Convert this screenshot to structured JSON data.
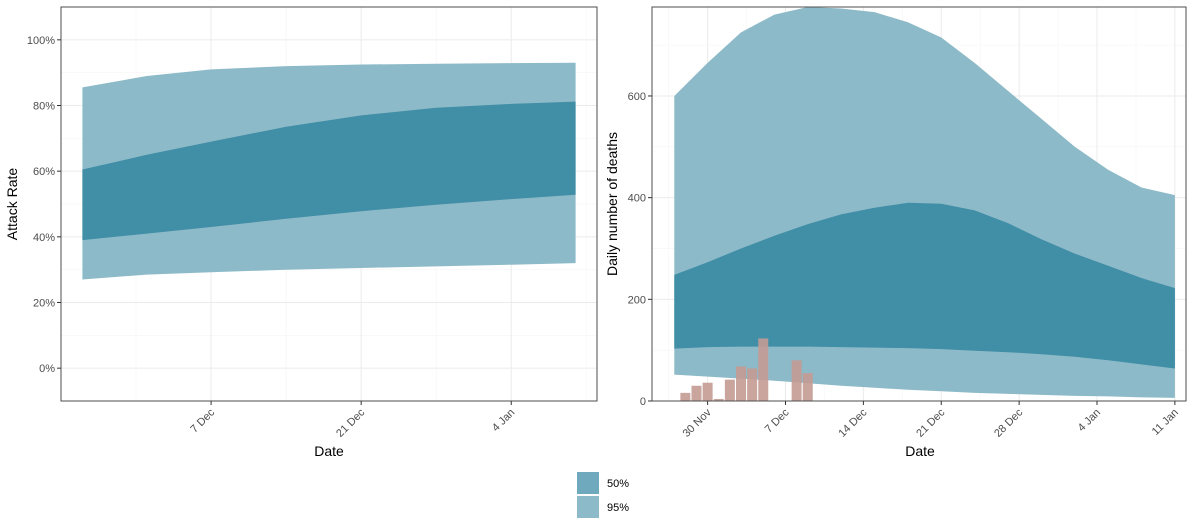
{
  "colors": {
    "band_95": "#8dbac8",
    "band_50": "#418ea7",
    "observed_deaths": "#c49b93",
    "panel_border": "#4d4d4d",
    "grid_major": "#ebebeb",
    "grid_minor": "#f5f5f5"
  },
  "legend": {
    "items": [
      {
        "label": "50%",
        "color": "#6fa9bd"
      },
      {
        "label": "95%",
        "color": "#8dbac8"
      }
    ]
  },
  "chart_data": [
    {
      "type": "area",
      "title": "",
      "xlabel": "Date",
      "ylabel": "Attack Rate",
      "xlim": [
        "2020-11-23",
        "2021-01-12"
      ],
      "ylim": [
        -0.1,
        1.1
      ],
      "x_ticks": [
        {
          "date": "2020-12-07",
          "label": "7 Dec"
        },
        {
          "date": "2020-12-21",
          "label": "21 Dec"
        },
        {
          "date": "2021-01-04",
          "label": "4 Jan"
        }
      ],
      "y_ticks": [
        {
          "value": 0.0,
          "label": "0%"
        },
        {
          "value": 0.2,
          "label": "20%"
        },
        {
          "value": 0.4,
          "label": "40%"
        },
        {
          "value": 0.6,
          "label": "60%"
        },
        {
          "value": 0.8,
          "label": "80%"
        },
        {
          "value": 1.0,
          "label": "100%"
        }
      ],
      "grid": true,
      "series": [
        {
          "name": "95%",
          "x": [
            "2020-11-25",
            "2020-12-01",
            "2020-12-07",
            "2020-12-14",
            "2020-12-21",
            "2020-12-28",
            "2021-01-04",
            "2021-01-10"
          ],
          "lower": [
            0.27,
            0.285,
            0.292,
            0.3,
            0.305,
            0.31,
            0.315,
            0.32
          ],
          "upper": [
            0.855,
            0.89,
            0.91,
            0.92,
            0.925,
            0.927,
            0.929,
            0.93
          ]
        },
        {
          "name": "50%",
          "x": [
            "2020-11-25",
            "2020-12-01",
            "2020-12-07",
            "2020-12-14",
            "2020-12-21",
            "2020-12-28",
            "2021-01-04",
            "2021-01-10"
          ],
          "lower": [
            0.39,
            0.41,
            0.43,
            0.455,
            0.478,
            0.498,
            0.515,
            0.528
          ],
          "upper": [
            0.605,
            0.65,
            0.69,
            0.735,
            0.77,
            0.793,
            0.805,
            0.812
          ]
        }
      ]
    },
    {
      "type": "area",
      "title": "",
      "xlabel": "Date",
      "ylabel": "Daily number of deaths",
      "xlim": [
        "2020-11-25",
        "2021-01-12"
      ],
      "ylim": [
        0,
        775
      ],
      "x_ticks": [
        {
          "date": "2020-11-30",
          "label": "30 Nov"
        },
        {
          "date": "2020-12-07",
          "label": "7 Dec"
        },
        {
          "date": "2020-12-14",
          "label": "14 Dec"
        },
        {
          "date": "2020-12-21",
          "label": "21 Dec"
        },
        {
          "date": "2020-12-28",
          "label": "28 Dec"
        },
        {
          "date": "2021-01-04",
          "label": "4 Jan"
        },
        {
          "date": "2021-01-11",
          "label": "11 Jan"
        }
      ],
      "y_ticks": [
        {
          "value": 0,
          "label": "0"
        },
        {
          "value": 200,
          "label": "200"
        },
        {
          "value": 400,
          "label": "400"
        },
        {
          "value": 600,
          "label": "600"
        }
      ],
      "grid": true,
      "series": [
        {
          "name": "95%",
          "x": [
            "2020-11-27",
            "2020-11-30",
            "2020-12-03",
            "2020-12-06",
            "2020-12-09",
            "2020-12-12",
            "2020-12-15",
            "2020-12-18",
            "2020-12-21",
            "2020-12-24",
            "2020-12-27",
            "2020-12-30",
            "2021-01-02",
            "2021-01-05",
            "2021-01-08",
            "2021-01-11"
          ],
          "lower": [
            52,
            48,
            44,
            40,
            35,
            30,
            26,
            22,
            19,
            16,
            14,
            12,
            10,
            9,
            7,
            6
          ],
          "upper": [
            600,
            665,
            725,
            760,
            775,
            772,
            765,
            745,
            715,
            665,
            610,
            555,
            500,
            455,
            420,
            405
          ]
        },
        {
          "name": "50%",
          "x": [
            "2020-11-27",
            "2020-11-30",
            "2020-12-03",
            "2020-12-06",
            "2020-12-09",
            "2020-12-12",
            "2020-12-15",
            "2020-12-18",
            "2020-12-21",
            "2020-12-24",
            "2020-12-27",
            "2020-12-30",
            "2021-01-02",
            "2021-01-05",
            "2021-01-08",
            "2021-01-11"
          ],
          "lower": [
            103,
            106,
            107,
            107,
            107,
            106,
            105,
            104,
            102,
            99,
            96,
            92,
            87,
            80,
            72,
            64
          ],
          "upper": [
            248,
            273,
            300,
            325,
            348,
            367,
            380,
            390,
            388,
            375,
            350,
            318,
            290,
            266,
            242,
            222
          ]
        }
      ],
      "observed_deaths": {
        "dates": [
          "2020-11-28",
          "2020-11-29",
          "2020-11-30",
          "2020-12-01",
          "2020-12-02",
          "2020-12-03",
          "2020-12-04",
          "2020-12-05",
          "2020-12-06",
          "2020-12-07",
          "2020-12-08",
          "2020-12-09"
        ],
        "values": [
          16,
          30,
          36,
          4,
          42,
          68,
          64,
          123,
          0,
          0,
          80,
          55
        ]
      }
    }
  ]
}
